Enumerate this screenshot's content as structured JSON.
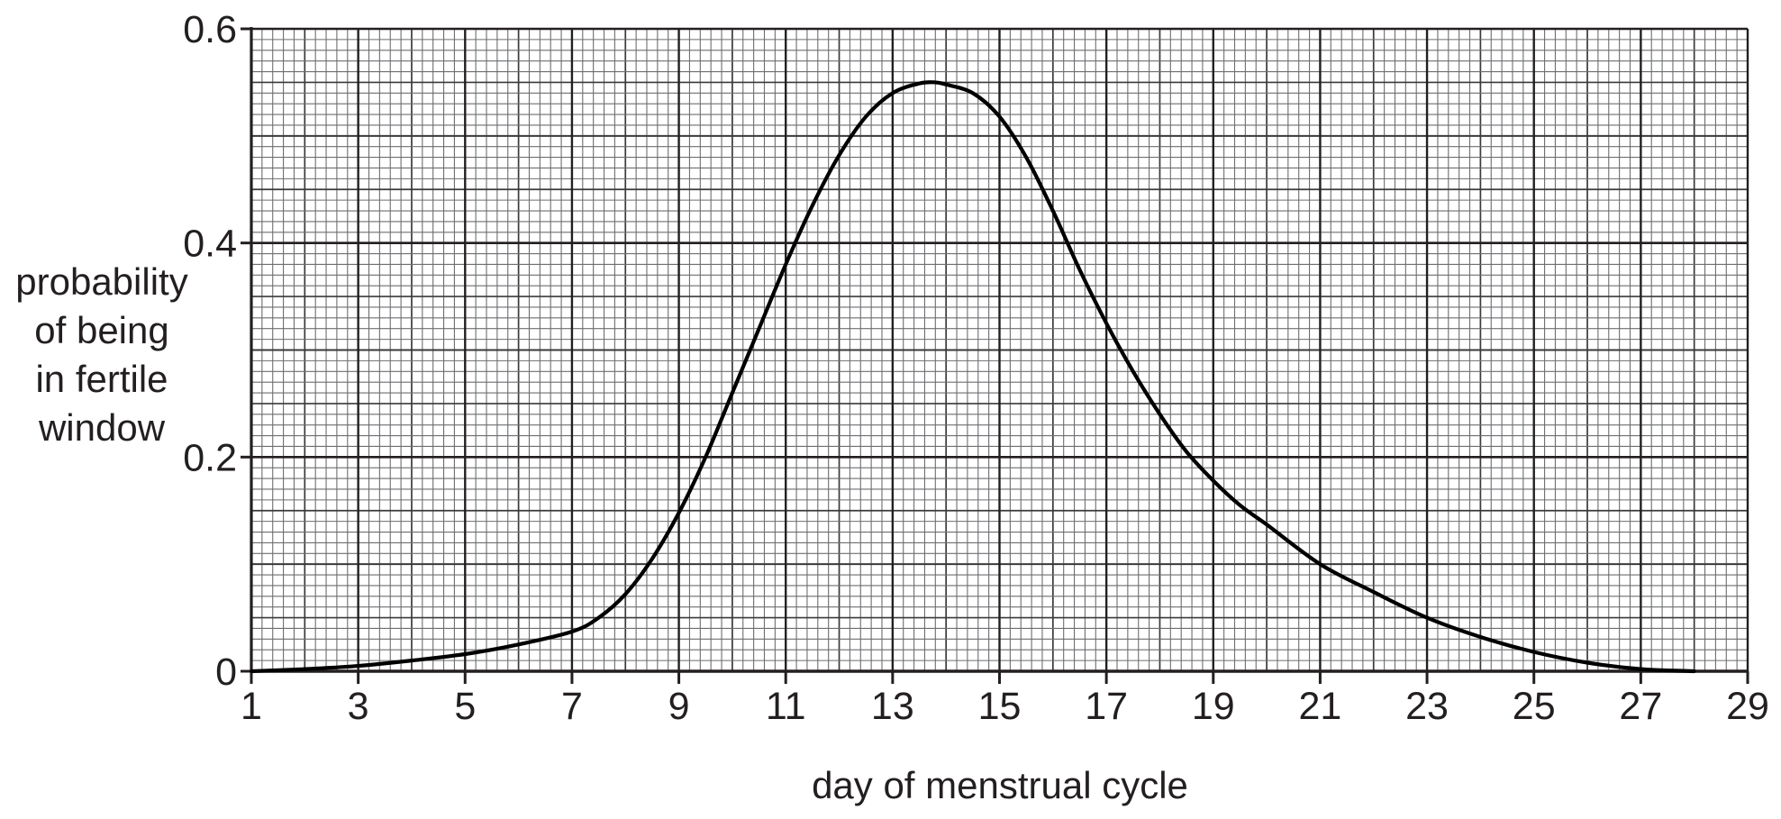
{
  "chart_data": {
    "type": "line",
    "xlabel": "day of menstrual cycle",
    "ylabel": [
      "probability",
      "of being",
      "in fertile",
      "window"
    ],
    "xlim": [
      1,
      29
    ],
    "ylim": [
      0,
      0.6
    ],
    "xticks": [
      "1",
      "3",
      "5",
      "7",
      "9",
      "11",
      "13",
      "15",
      "17",
      "19",
      "21",
      "23",
      "25",
      "27",
      "29"
    ],
    "yticks": [
      "0",
      "0.2",
      "0.4",
      "0.6"
    ],
    "grid": true,
    "series": [
      {
        "x": [
          1,
          2,
          3,
          4,
          5,
          6,
          7,
          7.5,
          8,
          8.5,
          9,
          9.5,
          10,
          10.5,
          11,
          11.5,
          12,
          12.5,
          13,
          13.5,
          13.8,
          14,
          14.5,
          15,
          15.5,
          16,
          16.5,
          17,
          17.5,
          18,
          18.5,
          19,
          19.5,
          20,
          21,
          22,
          23,
          24,
          25,
          26,
          27,
          28
        ],
        "y": [
          0,
          0.002,
          0.005,
          0.01,
          0.016,
          0.025,
          0.037,
          0.05,
          0.072,
          0.105,
          0.148,
          0.2,
          0.26,
          0.32,
          0.38,
          0.435,
          0.482,
          0.518,
          0.54,
          0.549,
          0.55,
          0.548,
          0.54,
          0.518,
          0.48,
          0.43,
          0.375,
          0.325,
          0.28,
          0.24,
          0.205,
          0.178,
          0.155,
          0.137,
          0.1,
          0.074,
          0.05,
          0.032,
          0.018,
          0.008,
          0.002,
          0
        ]
      }
    ]
  }
}
